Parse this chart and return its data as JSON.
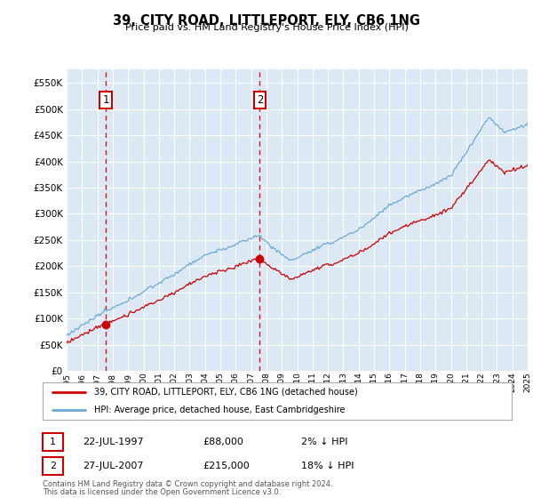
{
  "title": "39, CITY ROAD, LITTLEPORT, ELY, CB6 1NG",
  "subtitle": "Price paid vs. HM Land Registry's House Price Index (HPI)",
  "plot_bg_color": "#dce9f5",
  "hpi_color": "#6aaad4",
  "price_color": "#cc0000",
  "ylim": [
    0,
    575000
  ],
  "yticks": [
    0,
    50000,
    100000,
    150000,
    200000,
    250000,
    300000,
    350000,
    400000,
    450000,
    500000,
    550000
  ],
  "sale1_year": 1997.55,
  "sale1_price": 88000,
  "sale2_year": 2007.57,
  "sale2_price": 215000,
  "legend_line1": "39, CITY ROAD, LITTLEPORT, ELY, CB6 1NG (detached house)",
  "legend_line2": "HPI: Average price, detached house, East Cambridgeshire",
  "sale1_date": "22-JUL-1997",
  "sale1_amount": "£88,000",
  "sale1_hpi_pct": "2% ↓ HPI",
  "sale2_date": "27-JUL-2007",
  "sale2_amount": "£215,000",
  "sale2_hpi_pct": "18% ↓ HPI",
  "footer1": "Contains HM Land Registry data © Crown copyright and database right 2024.",
  "footer2": "This data is licensed under the Open Government Licence v3.0."
}
